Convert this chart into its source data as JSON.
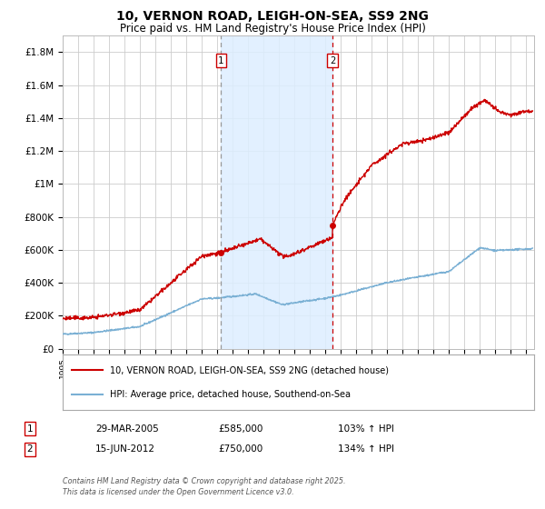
{
  "title": "10, VERNON ROAD, LEIGH-ON-SEA, SS9 2NG",
  "subtitle": "Price paid vs. HM Land Registry's House Price Index (HPI)",
  "title_fontsize": 10,
  "subtitle_fontsize": 8.5,
  "background_color": "#ffffff",
  "plot_bg_color": "#ffffff",
  "grid_color": "#cccccc",
  "red_line_color": "#cc0000",
  "blue_line_color": "#7ab0d4",
  "shade_color": "#ddeeff",
  "vline1_color": "#999999",
  "vline2_color": "#cc0000",
  "marker1_date": 2005.24,
  "marker1_value": 585000,
  "marker2_date": 2012.46,
  "marker2_value": 750000,
  "shade_x1": 2005.24,
  "shade_x2": 2012.46,
  "ylim": [
    0,
    1900000
  ],
  "xlim": [
    1995,
    2025.5
  ],
  "ytick_labels": [
    "£0",
    "£200K",
    "£400K",
    "£600K",
    "£800K",
    "£1M",
    "£1.2M",
    "£1.4M",
    "£1.6M",
    "£1.8M"
  ],
  "ytick_values": [
    0,
    200000,
    400000,
    600000,
    800000,
    1000000,
    1200000,
    1400000,
    1600000,
    1800000
  ],
  "xtick_years": [
    1995,
    1996,
    1997,
    1998,
    1999,
    2000,
    2001,
    2002,
    2003,
    2004,
    2005,
    2006,
    2007,
    2008,
    2009,
    2010,
    2011,
    2012,
    2013,
    2014,
    2015,
    2016,
    2017,
    2018,
    2019,
    2020,
    2021,
    2022,
    2023,
    2024,
    2025
  ],
  "legend_red_label": "10, VERNON ROAD, LEIGH-ON-SEA, SS9 2NG (detached house)",
  "legend_blue_label": "HPI: Average price, detached house, Southend-on-Sea",
  "table_row1": [
    "1",
    "29-MAR-2005",
    "£585,000",
    "103% ↑ HPI"
  ],
  "table_row2": [
    "2",
    "15-JUN-2012",
    "£750,000",
    "134% ↑ HPI"
  ],
  "footer_text": "Contains HM Land Registry data © Crown copyright and database right 2025.\nThis data is licensed under the Open Government Licence v3.0."
}
